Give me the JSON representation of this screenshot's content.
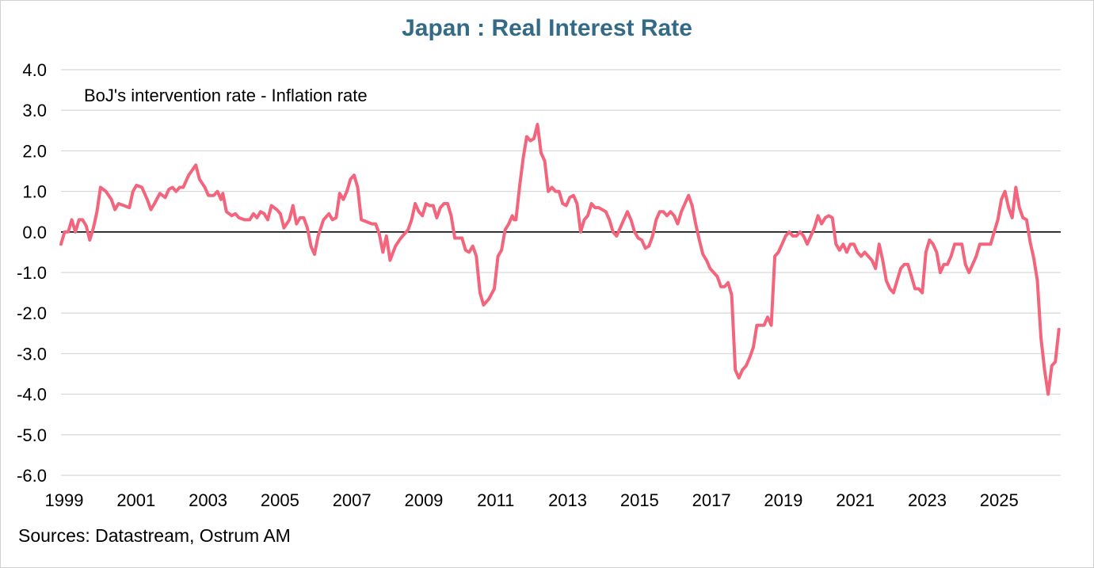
{
  "chart_data": {
    "type": "line",
    "title": "Japan : Real Interest Rate",
    "annotation": "BoJ's intervention rate - Inflation rate",
    "source": "Sources: Datastream, Ostrum AM",
    "xlabel": "",
    "ylabel": "",
    "ylim": [
      -6.0,
      4.0
    ],
    "xlim": [
      1999.0,
      2026.8
    ],
    "y_ticks": [
      "4.0",
      "3.0",
      "2.0",
      "1.0",
      "0.0",
      "-1.0",
      "-2.0",
      "-3.0",
      "-4.0",
      "-5.0",
      "-6.0"
    ],
    "x_ticks": [
      "1999",
      "2001",
      "2003",
      "2005",
      "2007",
      "2009",
      "2011",
      "2013",
      "2015",
      "2017",
      "2019",
      "2021",
      "2023",
      "2025"
    ],
    "grid": "horizontal",
    "zero_line": true,
    "series": [
      {
        "name": "BoJ's intervention rate - Inflation rate",
        "color": "#F2657C",
        "points": [
          [
            1999.0,
            -0.3
          ],
          [
            1999.1,
            0.0
          ],
          [
            1999.2,
            0.0
          ],
          [
            1999.3,
            0.3
          ],
          [
            1999.4,
            0.0
          ],
          [
            1999.5,
            0.3
          ],
          [
            1999.6,
            0.3
          ],
          [
            1999.7,
            0.15
          ],
          [
            1999.8,
            -0.2
          ],
          [
            1999.9,
            0.1
          ],
          [
            2000.0,
            0.5
          ],
          [
            2000.1,
            1.1
          ],
          [
            2000.25,
            1.0
          ],
          [
            2000.4,
            0.8
          ],
          [
            2000.5,
            0.55
          ],
          [
            2000.6,
            0.7
          ],
          [
            2000.75,
            0.65
          ],
          [
            2000.9,
            0.6
          ],
          [
            2001.0,
            1.0
          ],
          [
            2001.1,
            1.15
          ],
          [
            2001.25,
            1.1
          ],
          [
            2001.4,
            0.8
          ],
          [
            2001.5,
            0.55
          ],
          [
            2001.6,
            0.7
          ],
          [
            2001.75,
            0.95
          ],
          [
            2001.9,
            0.85
          ],
          [
            2002.0,
            1.05
          ],
          [
            2002.1,
            1.1
          ],
          [
            2002.2,
            1.0
          ],
          [
            2002.3,
            1.1
          ],
          [
            2002.4,
            1.1
          ],
          [
            2002.55,
            1.4
          ],
          [
            2002.75,
            1.65
          ],
          [
            2002.85,
            1.3
          ],
          [
            2003.0,
            1.1
          ],
          [
            2003.1,
            0.9
          ],
          [
            2003.25,
            0.9
          ],
          [
            2003.35,
            1.0
          ],
          [
            2003.45,
            0.8
          ],
          [
            2003.5,
            0.95
          ],
          [
            2003.6,
            0.5
          ],
          [
            2003.75,
            0.4
          ],
          [
            2003.85,
            0.45
          ],
          [
            2003.95,
            0.35
          ],
          [
            2004.1,
            0.3
          ],
          [
            2004.25,
            0.3
          ],
          [
            2004.35,
            0.45
          ],
          [
            2004.45,
            0.35
          ],
          [
            2004.55,
            0.5
          ],
          [
            2004.65,
            0.45
          ],
          [
            2004.75,
            0.3
          ],
          [
            2004.85,
            0.65
          ],
          [
            2005.0,
            0.55
          ],
          [
            2005.1,
            0.45
          ],
          [
            2005.2,
            0.1
          ],
          [
            2005.35,
            0.3
          ],
          [
            2005.45,
            0.65
          ],
          [
            2005.55,
            0.2
          ],
          [
            2005.65,
            0.35
          ],
          [
            2005.75,
            0.35
          ],
          [
            2005.85,
            0.1
          ],
          [
            2005.95,
            -0.35
          ],
          [
            2006.05,
            -0.55
          ],
          [
            2006.15,
            -0.1
          ],
          [
            2006.3,
            0.3
          ],
          [
            2006.45,
            0.45
          ],
          [
            2006.55,
            0.3
          ],
          [
            2006.65,
            0.35
          ],
          [
            2006.75,
            0.95
          ],
          [
            2006.85,
            0.8
          ],
          [
            2006.95,
            1.0
          ],
          [
            2007.05,
            1.3
          ],
          [
            2007.15,
            1.4
          ],
          [
            2007.25,
            1.1
          ],
          [
            2007.35,
            0.3
          ],
          [
            2007.5,
            0.25
          ],
          [
            2007.65,
            0.2
          ],
          [
            2007.75,
            0.2
          ],
          [
            2007.85,
            -0.05
          ],
          [
            2007.95,
            -0.5
          ],
          [
            2008.05,
            -0.1
          ],
          [
            2008.15,
            -0.7
          ],
          [
            2008.3,
            -0.35
          ],
          [
            2008.45,
            -0.15
          ],
          [
            2008.55,
            -0.05
          ],
          [
            2008.65,
            0.05
          ],
          [
            2008.75,
            0.3
          ],
          [
            2008.85,
            0.7
          ],
          [
            2008.95,
            0.5
          ],
          [
            2009.05,
            0.4
          ],
          [
            2009.15,
            0.7
          ],
          [
            2009.25,
            0.65
          ],
          [
            2009.35,
            0.65
          ],
          [
            2009.45,
            0.35
          ],
          [
            2009.55,
            0.6
          ],
          [
            2009.65,
            0.7
          ],
          [
            2009.75,
            0.7
          ],
          [
            2009.85,
            0.4
          ],
          [
            2009.95,
            -0.15
          ],
          [
            2010.05,
            -0.15
          ],
          [
            2010.15,
            -0.15
          ],
          [
            2010.25,
            -0.45
          ],
          [
            2010.35,
            -0.5
          ],
          [
            2010.45,
            -0.35
          ],
          [
            2010.55,
            -0.6
          ],
          [
            2010.65,
            -1.5
          ],
          [
            2010.75,
            -1.8
          ],
          [
            2010.9,
            -1.65
          ],
          [
            2011.05,
            -1.4
          ],
          [
            2011.15,
            -0.6
          ],
          [
            2011.25,
            -0.45
          ],
          [
            2011.35,
            0.05
          ],
          [
            2011.45,
            0.2
          ],
          [
            2011.55,
            0.4
          ],
          [
            2011.6,
            0.3
          ],
          [
            2011.65,
            0.3
          ],
          [
            2011.75,
            1.1
          ],
          [
            2011.85,
            1.8
          ],
          [
            2011.95,
            2.35
          ],
          [
            2012.05,
            2.25
          ],
          [
            2012.15,
            2.3
          ],
          [
            2012.25,
            2.65
          ],
          [
            2012.35,
            1.95
          ],
          [
            2012.45,
            1.75
          ],
          [
            2012.55,
            1.0
          ],
          [
            2012.65,
            1.1
          ],
          [
            2012.75,
            1.0
          ],
          [
            2012.85,
            1.0
          ],
          [
            2012.95,
            0.7
          ],
          [
            2013.05,
            0.65
          ],
          [
            2013.15,
            0.85
          ],
          [
            2013.25,
            0.9
          ],
          [
            2013.35,
            0.7
          ],
          [
            2013.45,
            0.0
          ],
          [
            2013.55,
            0.3
          ],
          [
            2013.65,
            0.4
          ],
          [
            2013.75,
            0.7
          ],
          [
            2013.85,
            0.6
          ],
          [
            2013.95,
            0.6
          ],
          [
            2014.05,
            0.55
          ],
          [
            2014.15,
            0.5
          ],
          [
            2014.25,
            0.3
          ],
          [
            2014.35,
            0.0
          ],
          [
            2014.45,
            -0.1
          ],
          [
            2014.55,
            0.1
          ],
          [
            2014.65,
            0.3
          ],
          [
            2014.75,
            0.5
          ],
          [
            2014.85,
            0.3
          ],
          [
            2014.95,
            0.0
          ],
          [
            2015.05,
            -0.15
          ],
          [
            2015.15,
            -0.2
          ],
          [
            2015.25,
            -0.4
          ],
          [
            2015.35,
            -0.35
          ],
          [
            2015.45,
            -0.1
          ],
          [
            2015.55,
            0.3
          ],
          [
            2015.65,
            0.5
          ],
          [
            2015.75,
            0.5
          ],
          [
            2015.85,
            0.4
          ],
          [
            2015.95,
            0.5
          ],
          [
            2016.05,
            0.4
          ],
          [
            2016.15,
            0.2
          ],
          [
            2016.25,
            0.5
          ],
          [
            2016.35,
            0.7
          ],
          [
            2016.45,
            0.9
          ],
          [
            2016.55,
            0.65
          ],
          [
            2016.65,
            0.2
          ],
          [
            2016.75,
            -0.2
          ],
          [
            2016.85,
            -0.55
          ],
          [
            2016.95,
            -0.7
          ],
          [
            2017.05,
            -0.9
          ],
          [
            2017.15,
            -1.0
          ],
          [
            2017.25,
            -1.1
          ],
          [
            2017.35,
            -1.35
          ],
          [
            2017.45,
            -1.35
          ],
          [
            2017.55,
            -1.25
          ],
          [
            2017.65,
            -1.55
          ],
          [
            2017.75,
            -3.4
          ],
          [
            2017.85,
            -3.6
          ],
          [
            2017.95,
            -3.4
          ],
          [
            2018.05,
            -3.3
          ],
          [
            2018.15,
            -3.1
          ],
          [
            2018.25,
            -2.85
          ],
          [
            2018.35,
            -2.3
          ],
          [
            2018.45,
            -2.3
          ],
          [
            2018.55,
            -2.3
          ],
          [
            2018.65,
            -2.1
          ],
          [
            2018.75,
            -2.3
          ],
          [
            2018.85,
            -0.6
          ],
          [
            2018.95,
            -0.5
          ],
          [
            2019.05,
            -0.3
          ],
          [
            2019.15,
            -0.1
          ],
          [
            2019.25,
            0.0
          ],
          [
            2019.35,
            -0.1
          ],
          [
            2019.45,
            -0.1
          ],
          [
            2019.55,
            0.0
          ],
          [
            2019.65,
            -0.1
          ],
          [
            2019.75,
            -0.3
          ],
          [
            2019.85,
            -0.1
          ],
          [
            2019.95,
            0.1
          ],
          [
            2020.05,
            0.4
          ],
          [
            2020.15,
            0.2
          ],
          [
            2020.25,
            0.35
          ],
          [
            2020.35,
            0.4
          ],
          [
            2020.45,
            0.35
          ],
          [
            2020.55,
            -0.3
          ],
          [
            2020.65,
            -0.45
          ],
          [
            2020.75,
            -0.3
          ],
          [
            2020.85,
            -0.5
          ],
          [
            2020.95,
            -0.3
          ],
          [
            2021.05,
            -0.3
          ],
          [
            2021.15,
            -0.5
          ],
          [
            2021.25,
            -0.6
          ],
          [
            2021.35,
            -0.5
          ],
          [
            2021.45,
            -0.6
          ],
          [
            2021.55,
            -0.7
          ],
          [
            2021.65,
            -0.9
          ],
          [
            2021.75,
            -0.3
          ],
          [
            2021.85,
            -0.7
          ],
          [
            2021.95,
            -1.2
          ],
          [
            2022.05,
            -1.4
          ],
          [
            2022.15,
            -1.5
          ],
          [
            2022.25,
            -1.2
          ],
          [
            2022.35,
            -0.9
          ],
          [
            2022.45,
            -0.8
          ],
          [
            2022.55,
            -0.8
          ],
          [
            2022.65,
            -1.1
          ],
          [
            2022.75,
            -1.4
          ],
          [
            2022.85,
            -1.4
          ],
          [
            2022.95,
            -1.5
          ],
          [
            2023.05,
            -0.5
          ],
          [
            2023.15,
            -0.2
          ],
          [
            2023.25,
            -0.3
          ],
          [
            2023.35,
            -0.5
          ],
          [
            2023.45,
            -1.0
          ],
          [
            2023.55,
            -0.8
          ],
          [
            2023.65,
            -0.8
          ],
          [
            2023.75,
            -0.6
          ],
          [
            2023.85,
            -0.3
          ],
          [
            2023.95,
            -0.3
          ],
          [
            2024.05,
            -0.3
          ],
          [
            2024.15,
            -0.8
          ],
          [
            2024.25,
            -1.0
          ],
          [
            2024.35,
            -0.8
          ],
          [
            2024.45,
            -0.6
          ],
          [
            2024.55,
            -0.3
          ],
          [
            2024.65,
            -0.3
          ],
          [
            2024.75,
            -0.3
          ],
          [
            2024.85,
            -0.3
          ],
          [
            2024.95,
            0.0
          ],
          [
            2025.05,
            0.3
          ],
          [
            2025.15,
            0.8
          ],
          [
            2025.25,
            1.0
          ],
          [
            2025.35,
            0.6
          ],
          [
            2025.45,
            0.35
          ],
          [
            2025.55,
            1.1
          ],
          [
            2025.65,
            0.6
          ],
          [
            2025.75,
            0.35
          ],
          [
            2025.85,
            0.3
          ],
          [
            2025.95,
            -0.25
          ],
          [
            2026.05,
            -0.65
          ],
          [
            2026.15,
            -1.2
          ],
          [
            2026.25,
            -2.6
          ],
          [
            2026.35,
            -3.4
          ],
          [
            2026.45,
            -4.0
          ],
          [
            2026.55,
            -3.3
          ],
          [
            2026.65,
            -3.2
          ],
          [
            2026.75,
            -2.4
          ]
        ]
      }
    ]
  }
}
